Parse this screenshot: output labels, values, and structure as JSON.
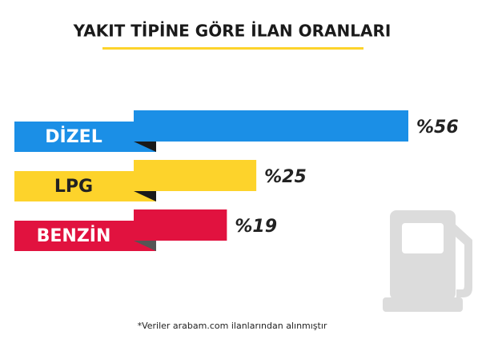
{
  "chart_data": {
    "type": "bar",
    "orientation": "horizontal",
    "title": "YAKIT TİPİNE GÖRE İLAN ORANLARI",
    "categories": [
      "DİZEL",
      "LPG",
      "BENZİN"
    ],
    "values": [
      56,
      25,
      19
    ],
    "value_labels": [
      "%56",
      "%25",
      "%19"
    ],
    "colors": [
      "#1b8fe6",
      "#fdd32b",
      "#e1123f"
    ],
    "label_colors": [
      "#ffffff",
      "#222222",
      "#ffffff"
    ],
    "note": "*Veriler arabam.com ilanlarından alınmıştır"
  }
}
